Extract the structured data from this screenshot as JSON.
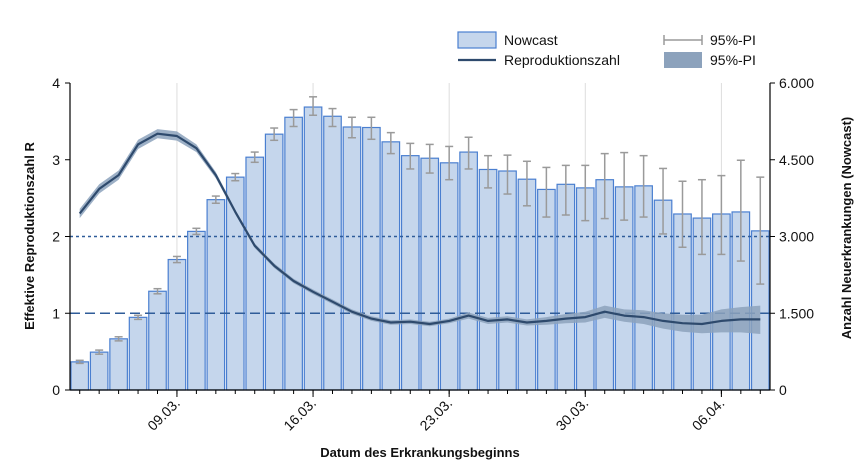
{
  "chart_data": {
    "type": "bar",
    "x_dates": [
      "04.03.",
      "05.03.",
      "06.03.",
      "07.03.",
      "08.03.",
      "09.03.",
      "10.03.",
      "11.03.",
      "12.03.",
      "13.03.",
      "14.03.",
      "15.03.",
      "16.03.",
      "17.03.",
      "18.03.",
      "19.03.",
      "20.03.",
      "21.03.",
      "22.03.",
      "23.03.",
      "24.03.",
      "25.03.",
      "26.03.",
      "27.03.",
      "28.03.",
      "29.03.",
      "30.03.",
      "31.03.",
      "01.04.",
      "02.04.",
      "03.04.",
      "04.04.",
      "05.04.",
      "06.04.",
      "07.04.",
      "08.04."
    ],
    "x_tick_labels": [
      "09.03.",
      "16.03.",
      "23.03.",
      "30.03.",
      "06.04."
    ],
    "x_tick_indices": [
      5,
      12,
      19,
      26,
      33
    ],
    "xlabel": "Datum des Erkrankungsbeginns",
    "ylabel_left": "Effektive Reproduktionszahl R",
    "ylabel_right": "Anzahl Neuerkrankungen (Nowcast)",
    "ylim_left": [
      0,
      4
    ],
    "yticks_left": [
      "0",
      "1",
      "2",
      "3",
      "4"
    ],
    "ylim_right": [
      0,
      6000
    ],
    "yticks_right": [
      "0",
      "1.500",
      "3.000",
      "4.500",
      "6.000"
    ],
    "reference_lines_left": [
      1,
      2
    ],
    "legend_position": "top-right",
    "series": [
      {
        "name": "Nowcast",
        "axis": "right",
        "color": "#c5d6ec",
        "edge_color": "#4a7fd0",
        "values": [
          550,
          740,
          1000,
          1420,
          1930,
          2550,
          3100,
          3720,
          4160,
          4550,
          5000,
          5330,
          5530,
          5350,
          5140,
          5130,
          4850,
          4580,
          4530,
          4440,
          4650,
          4310,
          4280,
          4120,
          3920,
          4020,
          3950,
          4110,
          3970,
          3990,
          3710,
          3440,
          3360,
          3440,
          3480,
          3110
        ],
        "ci_low": [
          520,
          700,
          960,
          1380,
          1880,
          2490,
          3040,
          3650,
          4090,
          4450,
          4880,
          5150,
          5370,
          5150,
          4930,
          4900,
          4620,
          4320,
          4240,
          4110,
          4320,
          3950,
          3830,
          3600,
          3380,
          3420,
          3310,
          3350,
          3320,
          3380,
          3050,
          2790,
          2650,
          2650,
          2520,
          2070
        ],
        "ci_high": [
          580,
          780,
          1040,
          1460,
          1980,
          2610,
          3160,
          3790,
          4230,
          4650,
          5120,
          5480,
          5730,
          5500,
          5330,
          5330,
          5030,
          4820,
          4800,
          4760,
          4940,
          4580,
          4590,
          4470,
          4350,
          4390,
          4390,
          4620,
          4640,
          4580,
          4330,
          4080,
          4110,
          4190,
          4490,
          4160
        ]
      },
      {
        "name": "Reproduktionszahl",
        "axis": "left",
        "color": "#2e4a6d",
        "band_color": "#8ca2bc",
        "values": [
          2.3,
          2.62,
          2.8,
          3.2,
          3.34,
          3.31,
          3.15,
          2.8,
          2.32,
          1.88,
          1.62,
          1.42,
          1.28,
          1.15,
          1.02,
          0.93,
          0.88,
          0.89,
          0.86,
          0.9,
          0.97,
          0.9,
          0.92,
          0.88,
          0.9,
          0.93,
          0.95,
          1.02,
          0.97,
          0.95,
          0.9,
          0.87,
          0.86,
          0.9,
          0.92,
          0.92
        ],
        "band_low": [
          2.24,
          2.56,
          2.74,
          3.14,
          3.28,
          3.25,
          3.1,
          2.76,
          2.29,
          1.85,
          1.59,
          1.39,
          1.25,
          1.12,
          0.99,
          0.9,
          0.85,
          0.86,
          0.83,
          0.87,
          0.93,
          0.86,
          0.88,
          0.84,
          0.85,
          0.87,
          0.88,
          0.94,
          0.89,
          0.86,
          0.8,
          0.76,
          0.74,
          0.75,
          0.75,
          0.73
        ],
        "band_high": [
          2.36,
          2.68,
          2.86,
          3.26,
          3.4,
          3.37,
          3.2,
          2.84,
          2.35,
          1.91,
          1.65,
          1.45,
          1.31,
          1.18,
          1.05,
          0.96,
          0.91,
          0.92,
          0.89,
          0.93,
          1.01,
          0.94,
          0.96,
          0.92,
          0.95,
          0.99,
          1.02,
          1.1,
          1.05,
          1.04,
          1.0,
          0.98,
          0.98,
          1.05,
          1.08,
          1.1
        ]
      }
    ],
    "legend": [
      {
        "label": "Nowcast",
        "symbol": "bar"
      },
      {
        "label": "Reproduktionszahl",
        "symbol": "line"
      },
      {
        "label": "95%-PI",
        "symbol": "errorbar"
      },
      {
        "label": "95%-PI",
        "symbol": "band"
      }
    ]
  }
}
